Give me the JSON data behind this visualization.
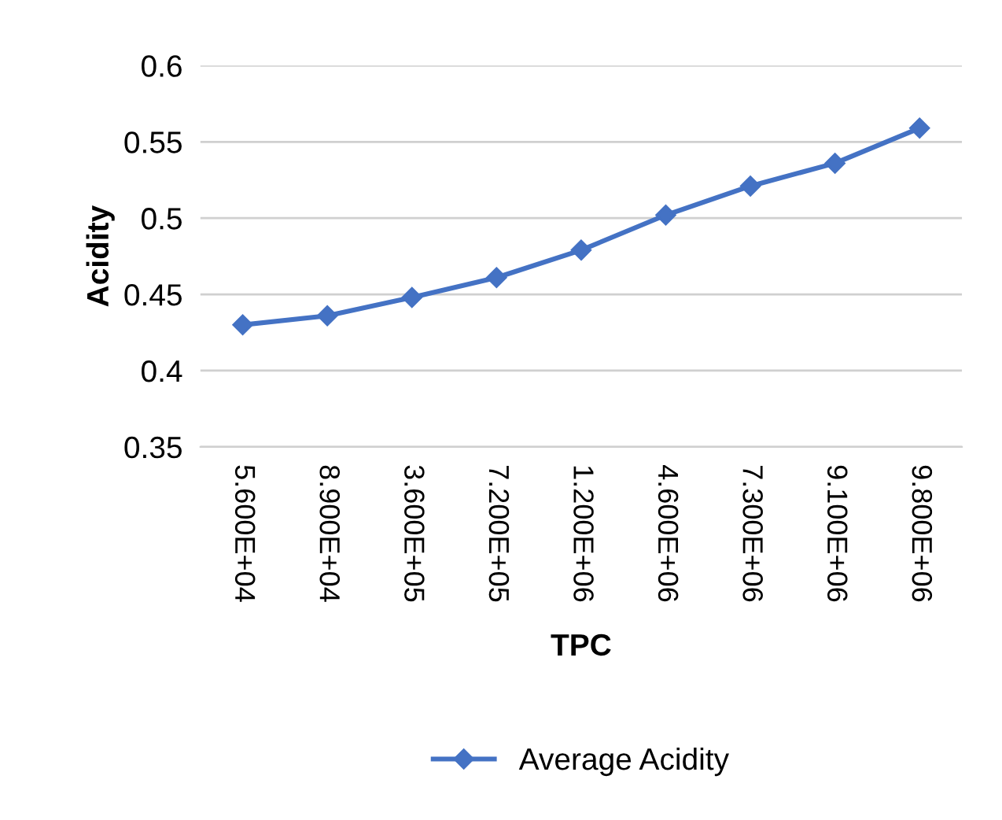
{
  "chart_data": {
    "type": "line",
    "xlabel": "TPC",
    "ylabel": "Acidity",
    "categories": [
      "5.600E+04",
      "8.900E+04",
      "3.600E+05",
      "7.200E+05",
      "1.200E+06",
      "4.600E+06",
      "7.300E+06",
      "9.100E+06",
      "9.800E+06"
    ],
    "series": [
      {
        "name": "Average Acidity",
        "color": "#4472c4",
        "values": [
          0.43,
          0.436,
          0.448,
          0.461,
          0.479,
          0.502,
          0.521,
          0.536,
          0.559
        ]
      }
    ],
    "ylim": [
      0.35,
      0.6
    ],
    "yticks": [
      0.35,
      0.4,
      0.45,
      0.5,
      0.55,
      0.6
    ],
    "grid": "y",
    "legend": "bottom",
    "marker": "diamond",
    "line_style": "solid"
  }
}
